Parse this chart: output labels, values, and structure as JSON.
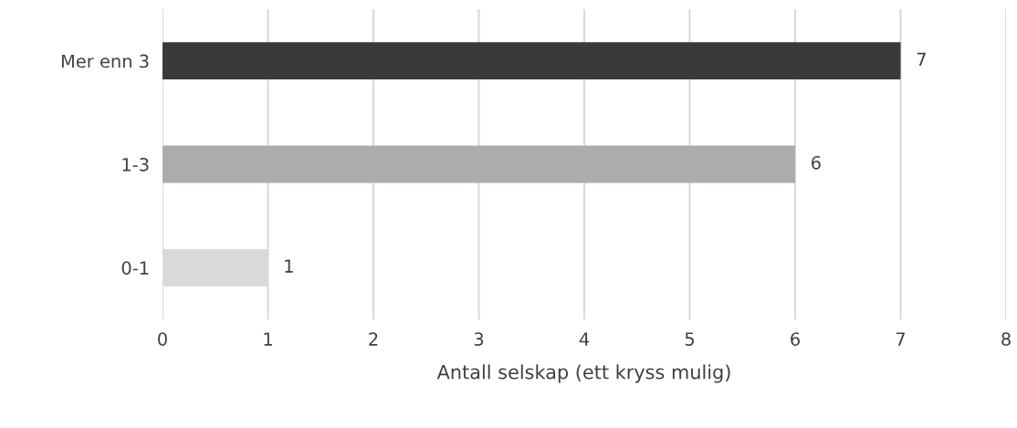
{
  "chart_data": {
    "type": "bar",
    "orientation": "horizontal",
    "categories": [
      "Mer enn 3",
      "1-3",
      "0-1"
    ],
    "values": [
      7,
      6,
      1
    ],
    "colors": [
      "#3a3a3a",
      "#aeabab",
      "#d9d9d9"
    ],
    "xlabel": "Antall selskap (ett kryss mulig)",
    "xlim": [
      0,
      8
    ],
    "xticks": [
      0,
      1,
      2,
      3,
      4,
      5,
      6,
      7,
      8
    ],
    "grid": "x",
    "data_labels": true
  }
}
